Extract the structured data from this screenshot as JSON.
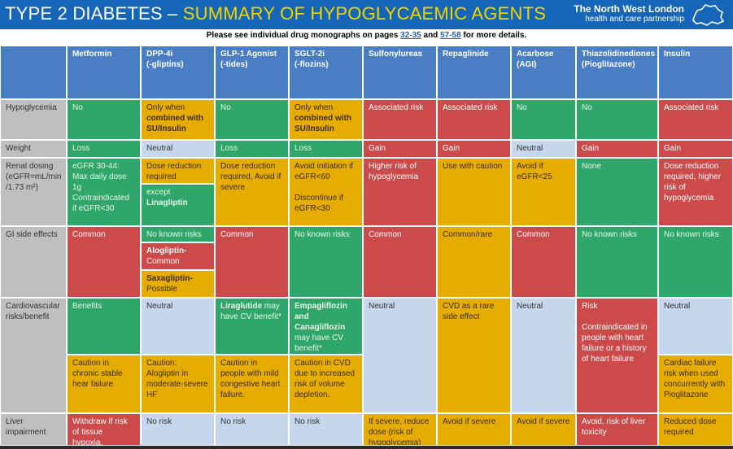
{
  "banner": {
    "title_part1": "TYPE 2 DIABETES – ",
    "title_part2": "SUMMARY OF HYPOGLYCAEMIC AGENTS",
    "logo_line1": "The North West London",
    "logo_line2": "health and care partnership"
  },
  "note": {
    "prefix": "Please see individual drug monographs on pages ",
    "link1": "32-35",
    "middle": " and ",
    "link2": "57-58",
    "suffix": "  for more details."
  },
  "columns": [
    "Metformin",
    "DPP-4i",
    "(-gliptins)",
    "GLP-1 Agonist",
    "(-tides)",
    "SGLT-2i",
    "(-flozins)",
    "Sulfonylureas",
    "Repaglinide",
    "Acarbose",
    "(AGI)",
    "Thiazolidinediones",
    "(Pioglitazone)",
    "Insulin"
  ],
  "rows": {
    "hypo": {
      "label": "Hypoglycemia",
      "metformin": "No",
      "dpp_a": "Only when",
      "dpp_b": "combined with SU/Insulin",
      "glp": "No",
      "sglt_a": "Only when",
      "sglt_b": "combined with SU/Insulin",
      "su": "Associated risk",
      "rep": "Associated risk",
      "acarbose": "No",
      "tzd": "No",
      "insulin": "Associated risk"
    },
    "weight": {
      "label": "Weight",
      "metformin": "Loss",
      "dpp": "Neutral",
      "glp": "Loss",
      "sglt": "Loss",
      "su": "Gain",
      "rep": "Gain",
      "acarbose": "Neutral",
      "tzd": "Gain",
      "insulin": "Gain"
    },
    "renal": {
      "label_a": "Renal dosing",
      "label_b": "(eGFR=mL/min",
      "label_c": "/1.73 m²)",
      "metformin_a": "eGFR 30-44:",
      "metformin_b": "Max daily dose 1g",
      "metformin_c": "Contraindicated if eGFR<30",
      "dpp_top": "Dose reduction required",
      "dpp_bottom_a": "except",
      "dpp_bottom_b": "Linagliptin",
      "glp": "Dose reduction required, Avoid if severe",
      "sglt_a": "Avoid initiation if eGFR<60",
      "sglt_b": "Discontinue if eGFR<30",
      "su": "Higher risk of hypoglycemia",
      "rep": "Use with caution",
      "acarbose": "Avoid if eGFR<25",
      "tzd": "None",
      "insulin": "Dose reduction required, higher risk of hypoglycemia"
    },
    "gi": {
      "label": "GI side effects",
      "metformin": "Common",
      "dpp_top": "No known risks",
      "dpp_mid_a": "Alogliptin-",
      "dpp_mid_b": "Common",
      "dpp_bot_a": "Saxagliptin-",
      "dpp_bot_b": "Possible",
      "glp": "Common",
      "sglt": "No known risks",
      "su": "Common",
      "rep": "Common/rare",
      "acarbose": "Common",
      "tzd": "No known risks",
      "insulin": "No known risks"
    },
    "cv": {
      "label_a": "Cardiovascular",
      "label_b": "risks/benefit",
      "metformin_top": "Benefits",
      "metformin_bot": "Caution in chronic stable hear failure",
      "dpp_top": "Neutral",
      "dpp_bot": "Caution: Alogliptin in moderate-severe HF",
      "glp_top_a": "Liraglutide",
      "glp_top_b": " may have CV benefit*",
      "glp_bot": "Caution in people with mild congestive heart failure.",
      "sglt_top_a": "Empagliflozin and Canagliflozin",
      "sglt_top_b": "may have CV benefit*",
      "sglt_bot": "Caution in CVD due to increased risk of volume depletion.",
      "su": "Neutral",
      "rep": "CVD as a rare side effect",
      "acarbose": "Neutral",
      "tzd_a": "Risk",
      "tzd_b": "Contraindicated in people with heart failure or a history of heart failure",
      "insulin_top": "Neutral",
      "insulin_bot": "Cardiac failure risk when used concurrently with Pioglitazone"
    },
    "liver": {
      "label_a": "Liver",
      "label_b": "impairment",
      "metformin": "Withdraw if risk of tissue hypoxia.",
      "dpp": "No risk",
      "glp": "No risk",
      "sglt": "No risk",
      "su": "If severe, reduce dose (risk of hypoglycemia)",
      "rep": "Avoid if severe",
      "acarbose": "Avoid if severe",
      "tzd": "Avoid, risk of liver toxicity",
      "insulin": "Reduced dose required"
    }
  },
  "colors": {
    "green": "#2fa66a",
    "yellow": "#e6ac00",
    "red": "#cd4a4a",
    "blue": "#c6d6ec",
    "header": "#4a7ec4",
    "banner": "#1565b8",
    "accent": "#f2d400"
  }
}
